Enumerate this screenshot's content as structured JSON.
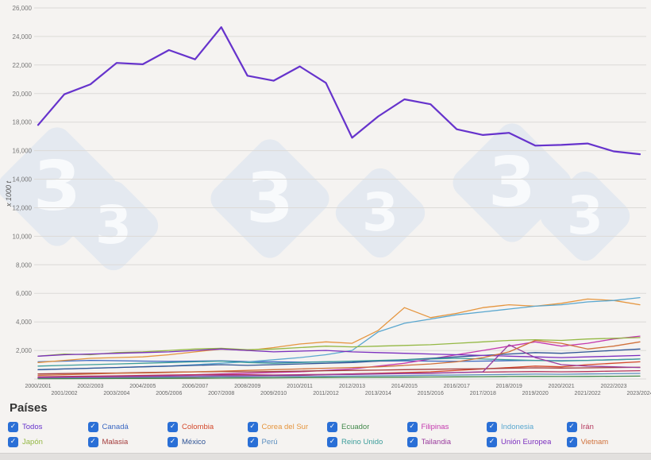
{
  "watermark": {
    "glyph": "3",
    "color": "#e4e9f0"
  },
  "chart_data": {
    "type": "line",
    "title": "",
    "xlabel": "",
    "ylabel": "x 1000 t",
    "ylim": [
      0,
      26000
    ],
    "ytick_step": 2000,
    "grid": true,
    "legend_position": "bottom",
    "x": [
      "2000/2001",
      "2001/2002",
      "2002/2003",
      "2003/2004",
      "2004/2005",
      "2005/2006",
      "2006/2007",
      "2007/2008",
      "2008/2009",
      "2009/2010",
      "2010/2011",
      "2011/2012",
      "2012/2013",
      "2013/2014",
      "2014/2015",
      "2015/2016",
      "2016/2017",
      "2017/2018",
      "2018/2019",
      "2019/2020",
      "2020/2021",
      "2021/2022",
      "2022/2023",
      "2023/2024"
    ],
    "series": [
      {
        "name": "Canadá",
        "color": "#3a67c2",
        "values": [
          1200,
          1250,
          1300,
          1280,
          1250,
          1230,
          1250,
          1270,
          1220,
          1200,
          1180,
          1200,
          1230,
          1250,
          1270,
          1250,
          1230,
          1250,
          1280,
          1300,
          1280,
          1300,
          1350,
          1400
        ]
      },
      {
        "name": "Colombia",
        "color": "#d4492c",
        "values": [
          30,
          40,
          50,
          60,
          80,
          100,
          120,
          150,
          170,
          200,
          250,
          300,
          350,
          400,
          450,
          500,
          600,
          700,
          800,
          900,
          850,
          1000,
          1100,
          1200
        ]
      },
      {
        "name": "Corea del Sur",
        "color": "#e5953e",
        "values": [
          1150,
          1300,
          1450,
          1500,
          1550,
          1700,
          1900,
          2100,
          2000,
          2200,
          2450,
          2600,
          2500,
          3400,
          5000,
          4300,
          4600,
          5000,
          5200,
          5100,
          5300,
          5600,
          5500,
          5200
        ]
      },
      {
        "name": "Ecuador",
        "color": "#41884a",
        "values": [
          20,
          25,
          30,
          35,
          40,
          45,
          50,
          60,
          70,
          80,
          90,
          100,
          110,
          120,
          130,
          140,
          150,
          160,
          170,
          180,
          170,
          180,
          190,
          200
        ]
      },
      {
        "name": "Filipinas",
        "color": "#c438ae",
        "values": [
          100,
          120,
          150,
          180,
          200,
          250,
          300,
          350,
          400,
          450,
          500,
          600,
          700,
          900,
          1100,
          1400,
          1700,
          2000,
          2300,
          2600,
          2300,
          2500,
          2800,
          3000
        ]
      },
      {
        "name": "Indonesia",
        "color": "#5aa7cf",
        "values": [
          650,
          700,
          750,
          800,
          850,
          900,
          1000,
          1100,
          1200,
          1350,
          1500,
          1700,
          2000,
          3300,
          3900,
          4200,
          4500,
          4700,
          4900,
          5100,
          5200,
          5400,
          5500,
          5700
        ]
      },
      {
        "name": "Irán",
        "color": "#b5385e",
        "values": [
          150,
          180,
          200,
          220,
          250,
          280,
          300,
          320,
          300,
          280,
          300,
          320,
          350,
          380,
          400,
          420,
          450,
          480,
          500,
          520,
          500,
          520,
          550,
          580
        ]
      },
      {
        "name": "Japón",
        "color": "#94b844",
        "values": [
          1600,
          1750,
          1700,
          1850,
          1900,
          2000,
          2100,
          2150,
          2050,
          2100,
          2200,
          2300,
          2250,
          2300,
          2350,
          2400,
          2500,
          2600,
          2700,
          2750,
          2700,
          2800,
          2850,
          2900
        ]
      },
      {
        "name": "Malasia",
        "color": "#a43c3c",
        "values": [
          350,
          380,
          400,
          420,
          450,
          480,
          500,
          520,
          500,
          520,
          550,
          580,
          600,
          620,
          650,
          680,
          700,
          720,
          750,
          780,
          760,
          780,
          800,
          820
        ]
      },
      {
        "name": "México",
        "color": "#2f5496",
        "values": [
          650,
          700,
          750,
          800,
          850,
          900,
          950,
          1000,
          950,
          1000,
          1050,
          1100,
          1150,
          1250,
          1350,
          1450,
          1550,
          1650,
          1750,
          1850,
          1800,
          1900,
          2000,
          2100
        ]
      },
      {
        "name": "Perú",
        "color": "#5d8fc0",
        "values": [
          80,
          90,
          100,
          110,
          120,
          130,
          140,
          150,
          160,
          170,
          180,
          190,
          200,
          220,
          240,
          260,
          280,
          300,
          320,
          340,
          330,
          350,
          370,
          390
        ]
      },
      {
        "name": "Reino Unido",
        "color": "#3d9e9b",
        "values": [
          900,
          950,
          1000,
          1050,
          1100,
          1150,
          1200,
          1250,
          1150,
          1100,
          1150,
          1200,
          1250,
          1300,
          1350,
          1400,
          1450,
          1400,
          1350,
          1300,
          1250,
          1300,
          1350,
          1400
        ]
      },
      {
        "name": "Tailandia",
        "color": "#9a3d9e",
        "values": [
          100,
          120,
          140,
          160,
          180,
          200,
          220,
          240,
          230,
          250,
          270,
          300,
          320,
          350,
          380,
          400,
          450,
          500,
          2400,
          1500,
          1000,
          900,
          850,
          800
        ]
      },
      {
        "name": "Unión Europea",
        "color": "#7b2fbf",
        "values": [
          1600,
          1700,
          1750,
          1800,
          1850,
          1900,
          2000,
          2100,
          2000,
          1900,
          1950,
          2000,
          1900,
          1850,
          1800,
          1750,
          1700,
          1650,
          1600,
          1550,
          1500,
          1550,
          1600,
          1650
        ]
      },
      {
        "name": "Vietnam",
        "color": "#d0713b",
        "values": [
          250,
          300,
          350,
          400,
          420,
          450,
          500,
          550,
          600,
          650,
          700,
          750,
          800,
          850,
          950,
          1050,
          1200,
          1500,
          1900,
          2700,
          2500,
          2100,
          2300,
          2600
        ]
      },
      {
        "name": "Todos",
        "color": "#6633cc",
        "values": [
          17800,
          19950,
          20650,
          22150,
          22050,
          23050,
          22400,
          24650,
          21250,
          20900,
          21900,
          20750,
          16900,
          18400,
          19600,
          19250,
          17500,
          17100,
          17250,
          16350,
          16400,
          16500,
          15950,
          15750
        ]
      }
    ]
  },
  "legend": {
    "title": "Países",
    "items": [
      {
        "label": "Todos",
        "color": "#6633cc",
        "checked": true
      },
      {
        "label": "Canadá",
        "color": "#3a67c2",
        "checked": true
      },
      {
        "label": "Colombia",
        "color": "#d4492c",
        "checked": true
      },
      {
        "label": "Corea del Sur",
        "color": "#e5953e",
        "checked": true
      },
      {
        "label": "Ecuador",
        "color": "#41884a",
        "checked": true
      },
      {
        "label": "Filipinas",
        "color": "#c438ae",
        "checked": true
      },
      {
        "label": "Indonesia",
        "color": "#5aa7cf",
        "checked": true
      },
      {
        "label": "Irán",
        "color": "#b5385e",
        "checked": true
      },
      {
        "label": "Japón",
        "color": "#94b844",
        "checked": true
      },
      {
        "label": "Malasia",
        "color": "#a43c3c",
        "checked": true
      },
      {
        "label": "México",
        "color": "#2f5496",
        "checked": true
      },
      {
        "label": "Perú",
        "color": "#5d8fc0",
        "checked": true
      },
      {
        "label": "Reino Unido",
        "color": "#3d9e9b",
        "checked": true
      },
      {
        "label": "Tailandia",
        "color": "#9a3d9e",
        "checked": true
      },
      {
        "label": "Unión Europea",
        "color": "#7b2fbf",
        "checked": true
      },
      {
        "label": "Vietnam",
        "color": "#d0713b",
        "checked": true
      }
    ]
  }
}
